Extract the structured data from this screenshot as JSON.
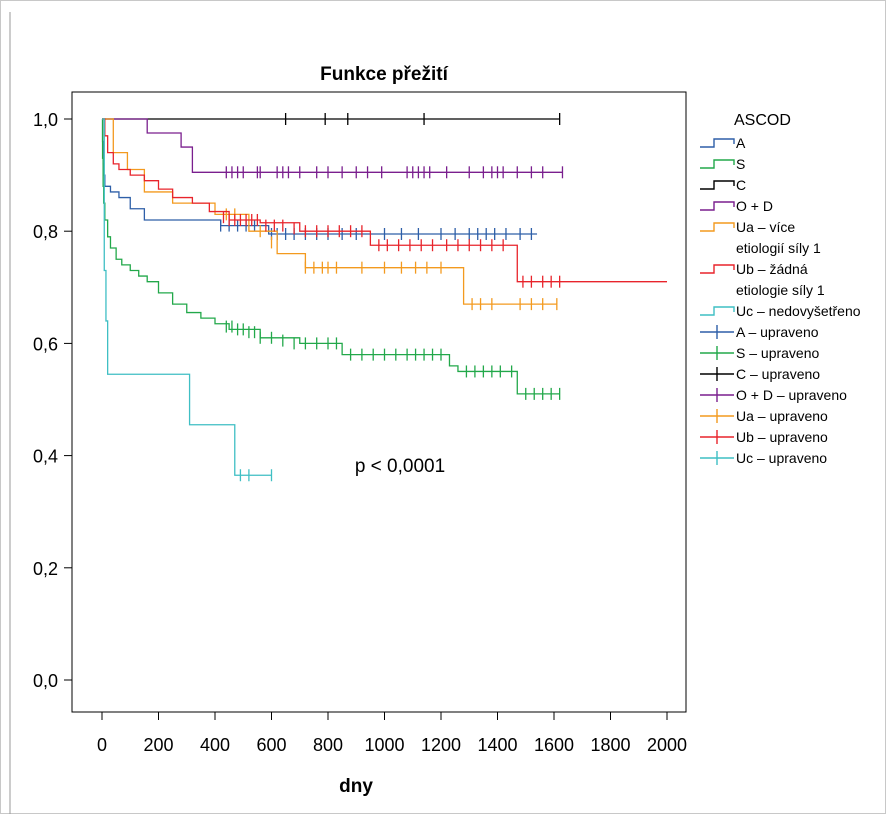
{
  "chart_data": {
    "type": "line",
    "title": "Funkce přežití",
    "xlabel": "dny",
    "ylabel": "",
    "xlim": [
      0,
      2000
    ],
    "ylim": [
      0,
      1
    ],
    "x_ticks": [
      "0",
      "200",
      "400",
      "600",
      "800",
      "1000",
      "1200",
      "1400",
      "1600",
      "1800",
      "2000"
    ],
    "y_ticks": [
      "0,0",
      "0,2",
      "0,4",
      "0,6",
      "0,8",
      "1,0"
    ],
    "grid": false,
    "legend_title": "ASCOD",
    "legend_position": "right",
    "annotation": "p < 0,0001",
    "legend": [
      {
        "label": "A",
        "color": "#2E5FA8",
        "kind": "step"
      },
      {
        "label": "S",
        "color": "#22A84A",
        "kind": "step"
      },
      {
        "label": "C",
        "color": "#000000",
        "kind": "step"
      },
      {
        "label": "O + D",
        "color": "#7A1F8E",
        "kind": "step"
      },
      {
        "label": "Ua – více\netiologií síly 1",
        "color": "#F39A1F",
        "kind": "step"
      },
      {
        "label": "Ub – žádná\netiologie síly 1",
        "color": "#E8242B",
        "kind": "step"
      },
      {
        "label": "Uc – nedovyšetřeno",
        "color": "#3FBFC4",
        "kind": "step"
      },
      {
        "label": "A – upraveno",
        "color": "#2E5FA8",
        "kind": "cross"
      },
      {
        "label": "S – upraveno",
        "color": "#22A84A",
        "kind": "cross"
      },
      {
        "label": "C – upraveno",
        "color": "#000000",
        "kind": "cross"
      },
      {
        "label": "O + D – upraveno",
        "color": "#7A1F8E",
        "kind": "cross"
      },
      {
        "label": "Ua – upraveno",
        "color": "#F39A1F",
        "kind": "cross"
      },
      {
        "label": "Ub – upraveno",
        "color": "#E8242B",
        "kind": "cross"
      },
      {
        "label": "Uc – upraveno",
        "color": "#3FBFC4",
        "kind": "cross"
      }
    ],
    "series": [
      {
        "name": "A",
        "color": "#2E5FA8",
        "x": [
          0,
          2,
          4,
          6,
          10,
          30,
          60,
          100,
          150,
          420,
          590,
          1540
        ],
        "y": [
          1.0,
          0.96,
          0.92,
          0.9,
          0.88,
          0.87,
          0.86,
          0.84,
          0.82,
          0.81,
          0.795,
          0.795
        ],
        "censored": [
          [
            420,
            0.81
          ],
          [
            450,
            0.81
          ],
          [
            480,
            0.81
          ],
          [
            510,
            0.81
          ],
          [
            540,
            0.81
          ],
          [
            600,
            0.795
          ],
          [
            620,
            0.795
          ],
          [
            650,
            0.795
          ],
          [
            680,
            0.795
          ],
          [
            720,
            0.795
          ],
          [
            760,
            0.795
          ],
          [
            800,
            0.795
          ],
          [
            850,
            0.795
          ],
          [
            900,
            0.795
          ],
          [
            1000,
            0.795
          ],
          [
            1060,
            0.795
          ],
          [
            1120,
            0.795
          ],
          [
            1200,
            0.795
          ],
          [
            1250,
            0.795
          ],
          [
            1300,
            0.795
          ],
          [
            1330,
            0.795
          ],
          [
            1360,
            0.795
          ],
          [
            1390,
            0.795
          ],
          [
            1430,
            0.795
          ],
          [
            1480,
            0.795
          ],
          [
            1520,
            0.795
          ]
        ]
      },
      {
        "name": "S",
        "color": "#22A84A",
        "x": [
          0,
          2,
          4,
          6,
          10,
          20,
          30,
          50,
          70,
          100,
          130,
          160,
          200,
          250,
          300,
          350,
          400,
          450,
          560,
          700,
          850,
          1230,
          1260,
          1470,
          1620
        ],
        "y": [
          1.0,
          0.93,
          0.88,
          0.85,
          0.82,
          0.79,
          0.77,
          0.75,
          0.74,
          0.73,
          0.72,
          0.71,
          0.69,
          0.67,
          0.655,
          0.645,
          0.635,
          0.625,
          0.61,
          0.6,
          0.58,
          0.56,
          0.55,
          0.51,
          0.51
        ],
        "censored": [
          [
            440,
            0.63
          ],
          [
            460,
            0.63
          ],
          [
            480,
            0.625
          ],
          [
            500,
            0.625
          ],
          [
            520,
            0.62
          ],
          [
            540,
            0.62
          ],
          [
            560,
            0.61
          ],
          [
            600,
            0.61
          ],
          [
            640,
            0.605
          ],
          [
            680,
            0.6
          ],
          [
            720,
            0.6
          ],
          [
            760,
            0.6
          ],
          [
            800,
            0.6
          ],
          [
            830,
            0.6
          ],
          [
            880,
            0.58
          ],
          [
            920,
            0.58
          ],
          [
            960,
            0.58
          ],
          [
            1000,
            0.58
          ],
          [
            1040,
            0.58
          ],
          [
            1080,
            0.58
          ],
          [
            1110,
            0.58
          ],
          [
            1140,
            0.58
          ],
          [
            1170,
            0.58
          ],
          [
            1200,
            0.58
          ],
          [
            1290,
            0.55
          ],
          [
            1320,
            0.55
          ],
          [
            1350,
            0.55
          ],
          [
            1380,
            0.55
          ],
          [
            1410,
            0.55
          ],
          [
            1450,
            0.55
          ],
          [
            1500,
            0.51
          ],
          [
            1530,
            0.51
          ],
          [
            1560,
            0.51
          ],
          [
            1590,
            0.51
          ],
          [
            1620,
            0.51
          ]
        ]
      },
      {
        "name": "C",
        "color": "#000000",
        "x": [
          0,
          1620
        ],
        "y": [
          1.0,
          1.0
        ],
        "censored": [
          [
            650,
            1.0
          ],
          [
            790,
            1.0
          ],
          [
            870,
            1.0
          ],
          [
            1140,
            1.0
          ],
          [
            1620,
            1.0
          ]
        ]
      },
      {
        "name": "O + D",
        "color": "#7A1F8E",
        "x": [
          0,
          160,
          280,
          320,
          1630
        ],
        "y": [
          1.0,
          0.975,
          0.95,
          0.905,
          0.905
        ],
        "censored": [
          [
            440,
            0.905
          ],
          [
            460,
            0.905
          ],
          [
            480,
            0.905
          ],
          [
            500,
            0.905
          ],
          [
            550,
            0.905
          ],
          [
            560,
            0.905
          ],
          [
            620,
            0.905
          ],
          [
            640,
            0.905
          ],
          [
            660,
            0.905
          ],
          [
            700,
            0.905
          ],
          [
            760,
            0.905
          ],
          [
            800,
            0.905
          ],
          [
            850,
            0.905
          ],
          [
            900,
            0.905
          ],
          [
            940,
            0.905
          ],
          [
            990,
            0.905
          ],
          [
            1080,
            0.905
          ],
          [
            1100,
            0.905
          ],
          [
            1120,
            0.905
          ],
          [
            1140,
            0.905
          ],
          [
            1160,
            0.905
          ],
          [
            1220,
            0.905
          ],
          [
            1300,
            0.905
          ],
          [
            1350,
            0.905
          ],
          [
            1380,
            0.905
          ],
          [
            1400,
            0.905
          ],
          [
            1420,
            0.905
          ],
          [
            1470,
            0.905
          ],
          [
            1520,
            0.905
          ],
          [
            1560,
            0.905
          ],
          [
            1630,
            0.905
          ]
        ]
      },
      {
        "name": "Ua – více etiologií síly 1",
        "color": "#F39A1F",
        "x": [
          0,
          40,
          90,
          150,
          250,
          400,
          520,
          620,
          720,
          1280,
          1610
        ],
        "y": [
          1.0,
          0.94,
          0.91,
          0.87,
          0.85,
          0.83,
          0.8,
          0.76,
          0.735,
          0.67,
          0.67
        ],
        "censored": [
          [
            440,
            0.83
          ],
          [
            470,
            0.83
          ],
          [
            560,
            0.8
          ],
          [
            600,
            0.78
          ],
          [
            720,
            0.735
          ],
          [
            750,
            0.735
          ],
          [
            780,
            0.735
          ],
          [
            800,
            0.735
          ],
          [
            830,
            0.735
          ],
          [
            920,
            0.735
          ],
          [
            1000,
            0.735
          ],
          [
            1060,
            0.735
          ],
          [
            1110,
            0.735
          ],
          [
            1150,
            0.735
          ],
          [
            1200,
            0.735
          ],
          [
            1310,
            0.67
          ],
          [
            1340,
            0.67
          ],
          [
            1380,
            0.67
          ],
          [
            1480,
            0.67
          ],
          [
            1520,
            0.67
          ],
          [
            1560,
            0.67
          ],
          [
            1610,
            0.67
          ]
        ]
      },
      {
        "name": "Ub – žádná etiologie síly 1",
        "color": "#E8242B",
        "x": [
          0,
          10,
          20,
          40,
          60,
          100,
          150,
          200,
          250,
          320,
          380,
          450,
          560,
          700,
          950,
          1470,
          2000
        ],
        "y": [
          1.0,
          0.97,
          0.94,
          0.92,
          0.91,
          0.9,
          0.89,
          0.875,
          0.86,
          0.85,
          0.835,
          0.82,
          0.815,
          0.8,
          0.775,
          0.71,
          0.71
        ],
        "censored": [
          [
            430,
            0.825
          ],
          [
            450,
            0.82
          ],
          [
            470,
            0.82
          ],
          [
            490,
            0.82
          ],
          [
            510,
            0.82
          ],
          [
            530,
            0.82
          ],
          [
            550,
            0.82
          ],
          [
            580,
            0.81
          ],
          [
            610,
            0.81
          ],
          [
            640,
            0.81
          ],
          [
            680,
            0.805
          ],
          [
            720,
            0.8
          ],
          [
            760,
            0.8
          ],
          [
            800,
            0.8
          ],
          [
            840,
            0.8
          ],
          [
            880,
            0.8
          ],
          [
            920,
            0.8
          ],
          [
            980,
            0.775
          ],
          [
            1010,
            0.775
          ],
          [
            1050,
            0.775
          ],
          [
            1090,
            0.775
          ],
          [
            1130,
            0.775
          ],
          [
            1170,
            0.775
          ],
          [
            1220,
            0.775
          ],
          [
            1260,
            0.775
          ],
          [
            1300,
            0.775
          ],
          [
            1340,
            0.775
          ],
          [
            1380,
            0.775
          ],
          [
            1420,
            0.775
          ],
          [
            1490,
            0.71
          ],
          [
            1520,
            0.71
          ],
          [
            1560,
            0.71
          ],
          [
            1590,
            0.71
          ],
          [
            1620,
            0.71
          ]
        ]
      },
      {
        "name": "Uc – nedovyšetřeno",
        "color": "#3FBFC4",
        "x": [
          0,
          8,
          14,
          20,
          30,
          310,
          470,
          600
        ],
        "y": [
          1.0,
          0.73,
          0.64,
          0.545,
          0.545,
          0.455,
          0.365,
          0.365
        ],
        "censored": [
          [
            490,
            0.365
          ],
          [
            520,
            0.365
          ],
          [
            600,
            0.365
          ]
        ]
      }
    ]
  }
}
